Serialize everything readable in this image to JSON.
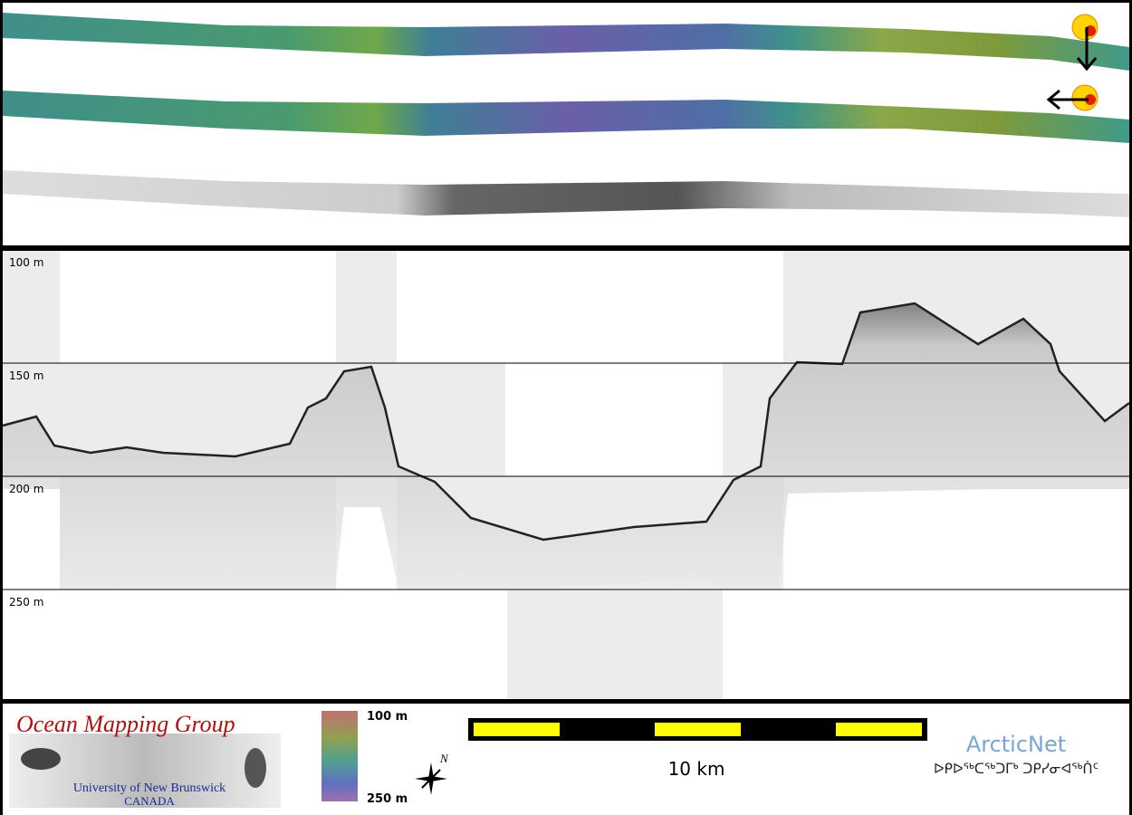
{
  "profile": {
    "depth_labels": [
      "100 m",
      "150 m",
      "200 m",
      "250 m"
    ]
  },
  "footer": {
    "logo": {
      "title": "Ocean Mapping Group",
      "university": "University of New Brunswick",
      "country": "CANADA"
    },
    "colorbar": {
      "top_label": "100 m",
      "bottom_label": "250 m"
    },
    "north_label": "N",
    "scale_label": "10 km",
    "partner": {
      "name": "ArcticNet",
      "syllabics": "ᐅᑭᐅᖅᑕᖅᑐᒥᒃ ᑐᑭᓯᓂᐊᖅᑏᑦ"
    }
  }
}
